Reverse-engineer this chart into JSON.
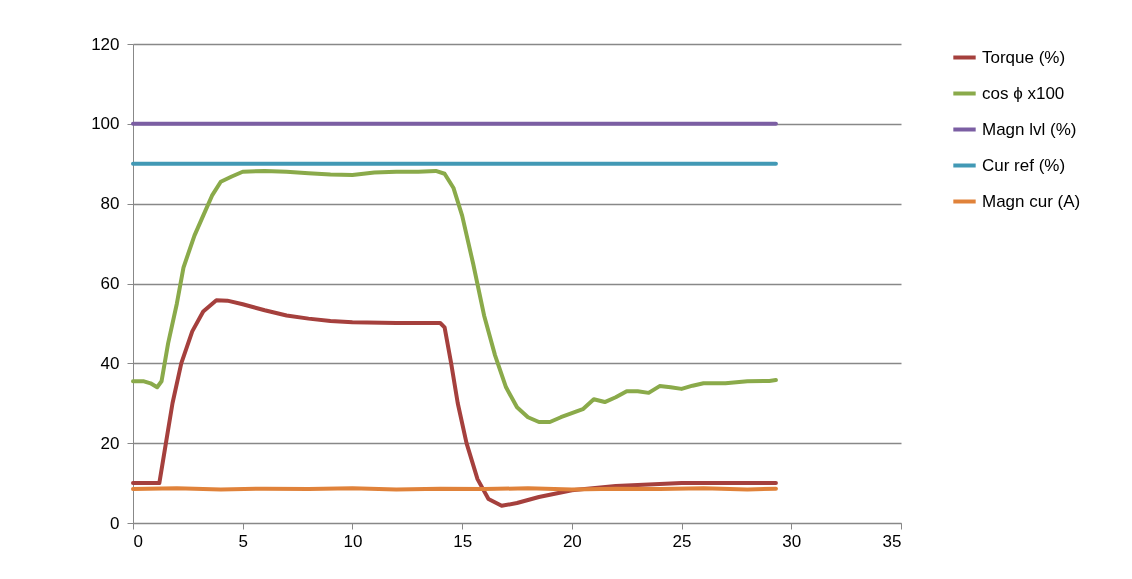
{
  "chart_data": {
    "type": "line",
    "xlim": [
      0,
      35
    ],
    "xticks": [
      0,
      5,
      10,
      15,
      20,
      25,
      30,
      35
    ],
    "ylim": [
      0,
      120
    ],
    "yticks": [
      0,
      20,
      40,
      60,
      80,
      100,
      120
    ],
    "grid": "y",
    "legend": "right",
    "line_style": "solid",
    "marker": "none",
    "series": [
      {
        "name": "Torque (%)",
        "color": "#a5403d",
        "x": [
          0,
          1.2,
          1.5,
          1.8,
          2.2,
          2.7,
          3.2,
          3.8,
          4.3,
          5,
          6,
          7,
          8,
          9,
          10,
          12,
          14,
          14.2,
          14.5,
          14.8,
          15.2,
          15.7,
          16.2,
          16.8,
          17.5,
          18.5,
          20,
          22,
          25,
          29.3
        ],
        "values": [
          10,
          10,
          20,
          30,
          40,
          48,
          53,
          55.8,
          55.7,
          54.8,
          53.3,
          52,
          51.2,
          50.6,
          50.3,
          50.1,
          50.1,
          49,
          40,
          30,
          20,
          11,
          6,
          4.3,
          5,
          6.5,
          8.2,
          9.3,
          10,
          10
        ]
      },
      {
        "name": "cos ϕ x100",
        "color": "#8aaa4a",
        "x": [
          0,
          0.5,
          0.8,
          1.1,
          1.3,
          1.6,
          2,
          2.3,
          2.8,
          3.2,
          3.6,
          4,
          4.5,
          5,
          6,
          7,
          8,
          9,
          10,
          11,
          12,
          13,
          13.8,
          14.2,
          14.6,
          15,
          15.5,
          16,
          16.5,
          17,
          17.5,
          18,
          18.5,
          19,
          19.5,
          20,
          20.5,
          21,
          21.5,
          22,
          22.5,
          23,
          23.5,
          24,
          24.5,
          25,
          25.5,
          26,
          27,
          28,
          29,
          29.3
        ],
        "values": [
          35.5,
          35.5,
          35,
          34,
          35.5,
          45,
          55,
          64,
          72,
          77,
          82,
          85.5,
          86.8,
          88,
          88.2,
          88,
          87.6,
          87.3,
          87.2,
          87.8,
          88,
          88,
          88.2,
          87.5,
          84,
          77,
          65,
          52,
          42,
          34,
          29,
          26.5,
          25.3,
          25.3,
          26.5,
          27.5,
          28.5,
          31,
          30.3,
          31.5,
          33,
          33,
          32.6,
          34.3,
          34,
          33.6,
          34.4,
          35,
          35,
          35.5,
          35.6,
          35.8
        ]
      },
      {
        "name": "Magn lvl (%)",
        "color": "#7b5ea3",
        "x": [
          0,
          29.3
        ],
        "values": [
          100,
          100
        ]
      },
      {
        "name": "Cur ref (%)",
        "color": "#4299b5",
        "x": [
          0,
          29.3
        ],
        "values": [
          90,
          90
        ]
      },
      {
        "name": "Magn cur (A)",
        "color": "#e0823a",
        "x": [
          0,
          2,
          4,
          6,
          8,
          10,
          12,
          14,
          16,
          18,
          20,
          22,
          24,
          26,
          28,
          29.3
        ],
        "values": [
          8.5,
          8.7,
          8.4,
          8.6,
          8.5,
          8.7,
          8.4,
          8.6,
          8.5,
          8.7,
          8.4,
          8.6,
          8.5,
          8.7,
          8.4,
          8.6
        ]
      }
    ]
  }
}
